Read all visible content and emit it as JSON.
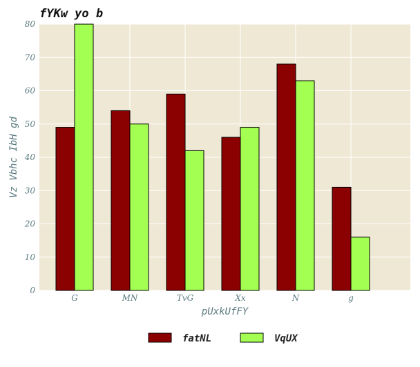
{
  "chart_data": {
    "type": "bar",
    "title": "fYKw yo b",
    "xlabel": "pUxkUfFY",
    "ylabel": "Vz Vbhc IbH gd",
    "categories": [
      "G",
      "MN",
      "TvG",
      "Xx",
      "N",
      "g"
    ],
    "ylim": [
      0,
      80
    ],
    "yticks": [
      0,
      10,
      20,
      30,
      40,
      50,
      60,
      70,
      80
    ],
    "grid": true,
    "legend_position": "bottom",
    "background": "#efe8d5",
    "series": [
      {
        "name": "fatNL",
        "color": "#8b0000",
        "values": [
          49,
          54,
          59,
          46,
          68,
          31
        ]
      },
      {
        "name": "VqUX",
        "color": "#a3ff52",
        "values": [
          80,
          50,
          42,
          49,
          63,
          16
        ]
      }
    ]
  }
}
